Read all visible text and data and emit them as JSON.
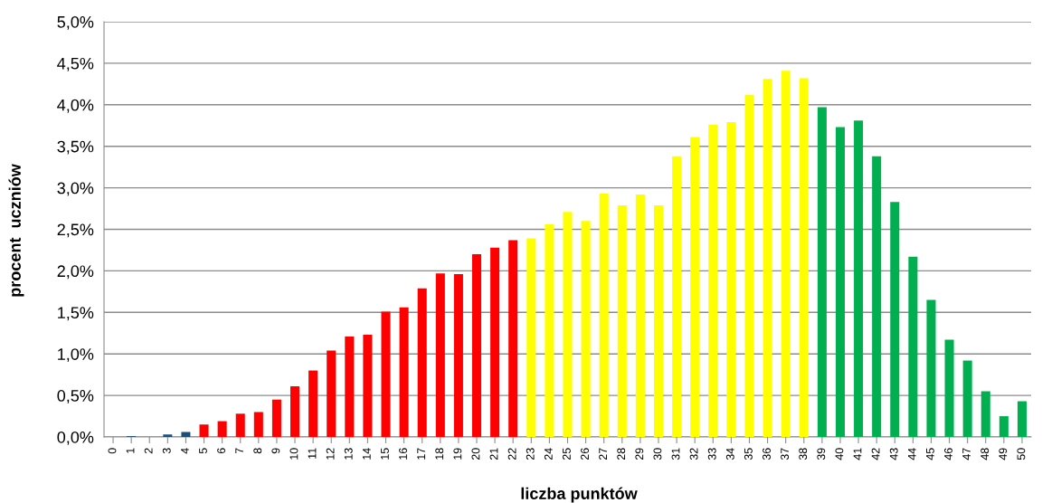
{
  "chart_data": {
    "type": "bar",
    "xlabel": "liczba punktów",
    "ylabel": "procent  uczniów",
    "categories": [
      "0",
      "1",
      "2",
      "3",
      "4",
      "5",
      "6",
      "7",
      "8",
      "9",
      "10",
      "11",
      "12",
      "13",
      "14",
      "15",
      "16",
      "17",
      "18",
      "19",
      "20",
      "21",
      "22",
      "23",
      "24",
      "25",
      "26",
      "27",
      "28",
      "29",
      "30",
      "31",
      "32",
      "33",
      "34",
      "35",
      "36",
      "37",
      "38",
      "39",
      "40",
      "41",
      "42",
      "43",
      "44",
      "45",
      "46",
      "47",
      "48",
      "49",
      "50"
    ],
    "values": [
      0,
      0.01,
      0,
      0.03,
      0.06,
      0.15,
      0.19,
      0.28,
      0.3,
      0.45,
      0.61,
      0.8,
      1.04,
      1.21,
      1.23,
      1.51,
      1.56,
      1.79,
      1.97,
      1.96,
      2.2,
      2.28,
      2.37,
      2.39,
      2.56,
      2.71,
      2.6,
      2.93,
      2.79,
      2.92,
      2.79,
      3.38,
      3.61,
      3.76,
      3.79,
      4.12,
      4.31,
      4.41,
      4.32,
      3.97,
      3.73,
      3.81,
      3.38,
      2.83,
      2.17,
      1.65,
      1.17,
      0.92,
      0.55,
      0.25,
      0.43
    ],
    "colors": [
      "#1f4e79",
      "#1f4e79",
      "#1f4e79",
      "#1f4e79",
      "#1f4e79",
      "#ff0000",
      "#ff0000",
      "#ff0000",
      "#ff0000",
      "#ff0000",
      "#ff0000",
      "#ff0000",
      "#ff0000",
      "#ff0000",
      "#ff0000",
      "#ff0000",
      "#ff0000",
      "#ff0000",
      "#ff0000",
      "#ff0000",
      "#ff0000",
      "#ff0000",
      "#ff0000",
      "#ffff00",
      "#ffff00",
      "#ffff00",
      "#ffff00",
      "#ffff00",
      "#ffff00",
      "#ffff00",
      "#ffff00",
      "#ffff00",
      "#ffff00",
      "#ffff00",
      "#ffff00",
      "#ffff00",
      "#ffff00",
      "#ffff00",
      "#ffff00",
      "#00b050",
      "#00b050",
      "#00b050",
      "#00b050",
      "#00b050",
      "#00b050",
      "#00b050",
      "#00b050",
      "#00b050",
      "#00b050",
      "#00b050",
      "#00b050"
    ],
    "ylim": [
      0,
      5
    ],
    "yticks": [
      {
        "value": 0,
        "label": "0,0%"
      },
      {
        "value": 0.5,
        "label": "0,5%"
      },
      {
        "value": 1,
        "label": "1,0%"
      },
      {
        "value": 1.5,
        "label": "1,5%"
      },
      {
        "value": 2,
        "label": "2,0%"
      },
      {
        "value": 2.5,
        "label": "2,5%"
      },
      {
        "value": 3,
        "label": "3,0%"
      },
      {
        "value": 3.5,
        "label": "3,5%"
      },
      {
        "value": 4,
        "label": "4,0%"
      },
      {
        "value": 4.5,
        "label": "4,5%"
      },
      {
        "value": 5,
        "label": "5,0%"
      }
    ],
    "grid": "y",
    "legend": false
  }
}
